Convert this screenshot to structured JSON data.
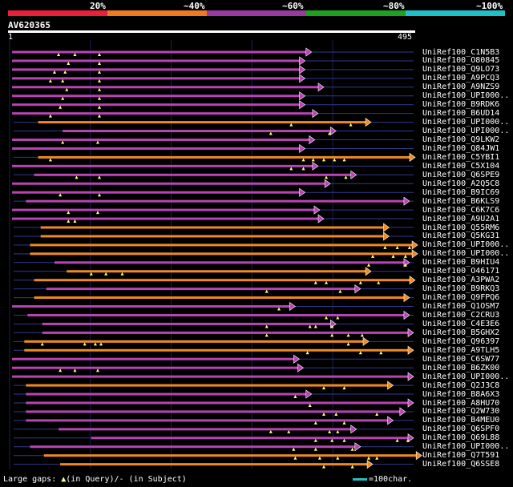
{
  "scale": {
    "segments": [
      {
        "label": "20%",
        "color": "#e8203a"
      },
      {
        "label": "~40%",
        "color": "#f07a22"
      },
      {
        "label": "~60%",
        "color": "#9a3aa0"
      },
      {
        "label": "~80%",
        "color": "#20a020"
      },
      {
        "label": "~100%",
        "color": "#20c0c8"
      }
    ]
  },
  "query": {
    "name": "AV620365",
    "start": "1",
    "end": "495",
    "length": 495
  },
  "colors": {
    "purple": "#b844b4",
    "orange": "#f08a20",
    "gap": "#303a90",
    "marker": "#ffff80"
  },
  "hits": [
    {
      "label": "UniRef100_C1N5B3",
      "color": "purple",
      "s": 3,
      "e": 370,
      "m": [
        60,
        80,
        110
      ]
    },
    {
      "label": "UniRef100_O80845",
      "color": "purple",
      "s": 3,
      "e": 362,
      "m": [
        72,
        110
      ]
    },
    {
      "label": "UniRef100_Q9LO73",
      "color": "purple",
      "s": 3,
      "e": 362,
      "m": [
        55,
        68,
        110
      ]
    },
    {
      "label": "UniRef100_A9PCQ3",
      "color": "purple",
      "s": 3,
      "e": 362,
      "m": [
        50,
        65,
        110
      ]
    },
    {
      "label": "UniRef100_A9NZS9",
      "color": "purple",
      "s": 3,
      "e": 385,
      "m": [
        70,
        110
      ]
    },
    {
      "label": "UniRef100_UPI000..",
      "color": "purple",
      "s": 3,
      "e": 362,
      "m": [
        65,
        110
      ]
    },
    {
      "label": "UniRef100_B9RDK6",
      "color": "purple",
      "s": 3,
      "e": 362,
      "m": [
        62,
        110
      ]
    },
    {
      "label": "UniRef100_B6UD14",
      "color": "purple",
      "s": 3,
      "e": 378,
      "m": [
        50,
        110
      ]
    },
    {
      "label": "UniRef100_UPI000..",
      "color": "orange",
      "s": 35,
      "e": 443,
      "m": [
        345,
        418
      ]
    },
    {
      "label": "UniRef100_UPI000..",
      "color": "purple",
      "s": 65,
      "e": 400,
      "m": [
        320,
        392
      ]
    },
    {
      "label": "UniRef100_Q9LKW2",
      "color": "purple",
      "s": 3,
      "e": 374,
      "m": [
        65,
        108
      ]
    },
    {
      "label": "UniRef100_Q84JW1",
      "color": "purple",
      "s": 3,
      "e": 362,
      "m": []
    },
    {
      "label": "UniRef100_C5YBI1",
      "color": "orange",
      "s": 35,
      "e": 497,
      "m": [
        50,
        360,
        372,
        385,
        398,
        410
      ]
    },
    {
      "label": "UniRef100_C5X104",
      "color": "purple",
      "s": 3,
      "e": 378,
      "m": [
        345,
        360
      ]
    },
    {
      "label": "UniRef100_Q6SPE9",
      "color": "purple",
      "s": 30,
      "e": 425,
      "m": [
        82,
        110,
        388,
        412
      ]
    },
    {
      "label": "UniRef100_A2Q5C8",
      "color": "purple",
      "s": 3,
      "e": 393,
      "m": []
    },
    {
      "label": "UniRef100_B9IC69",
      "color": "purple",
      "s": 3,
      "e": 362,
      "m": [
        62,
        110
      ]
    },
    {
      "label": "UniRef100_B6KLS9",
      "color": "purple",
      "s": 20,
      "e": 490,
      "m": []
    },
    {
      "label": "UniRef100_C6K7C6",
      "color": "purple",
      "s": 3,
      "e": 380,
      "m": [
        72,
        108
      ]
    },
    {
      "label": "UniRef100_A9U2A1",
      "color": "purple",
      "s": 3,
      "e": 385,
      "m": [
        72,
        80
      ]
    },
    {
      "label": "UniRef100_Q55RM6",
      "color": "orange",
      "s": 38,
      "e": 465,
      "m": []
    },
    {
      "label": "UniRef100_Q5KG31",
      "color": "orange",
      "s": 38,
      "e": 465,
      "m": []
    },
    {
      "label": "UniRef100_UPI000..",
      "color": "orange",
      "s": 25,
      "e": 500,
      "m": [
        460,
        475,
        490
      ]
    },
    {
      "label": "UniRef100_UPI000..",
      "color": "orange",
      "s": 25,
      "e": 500,
      "m": [
        445,
        470,
        485
      ]
    },
    {
      "label": "UniRef100_B9HIU4",
      "color": "purple",
      "s": 55,
      "e": 490,
      "m": [
        440,
        485
      ]
    },
    {
      "label": "UniRef100_O46171",
      "color": "orange",
      "s": 70,
      "e": 443,
      "m": [
        100,
        118,
        138
      ]
    },
    {
      "label": "UniRef100_A3PWA2",
      "color": "orange",
      "s": 30,
      "e": 497,
      "m": [
        375,
        388,
        430,
        452
      ]
    },
    {
      "label": "UniRef100_B9RKQ3",
      "color": "purple",
      "s": 45,
      "e": 430,
      "m": [
        315,
        405
      ]
    },
    {
      "label": "UniRef100_Q9FPQ6",
      "color": "orange",
      "s": 30,
      "e": 490,
      "m": []
    },
    {
      "label": "UniRef100_Q1OSM7",
      "color": "purple",
      "s": 3,
      "e": 350,
      "m": [
        330
      ]
    },
    {
      "label": "UniRef100_C2CRU3",
      "color": "purple",
      "s": 22,
      "e": 490,
      "m": [
        388,
        402
      ]
    },
    {
      "label": "UniRef100_C4E3E6",
      "color": "purple",
      "s": 40,
      "e": 400,
      "m": [
        315,
        368,
        375,
        395
      ]
    },
    {
      "label": "UniRef100_B5GHX2",
      "color": "purple",
      "s": 40,
      "e": 495,
      "m": [
        315,
        395,
        415,
        432
      ]
    },
    {
      "label": "UniRef100_Q96397",
      "color": "orange",
      "s": 18,
      "e": 440,
      "m": [
        40,
        92,
        105,
        112,
        415
      ]
    },
    {
      "label": "UniRef100_A9TLH5",
      "color": "orange",
      "s": 18,
      "e": 495,
      "m": [
        365,
        430,
        455
      ]
    },
    {
      "label": "UniRef100_C6SW77",
      "color": "purple",
      "s": 3,
      "e": 355,
      "m": []
    },
    {
      "label": "UniRef100_B6ZK00",
      "color": "purple",
      "s": 3,
      "e": 360,
      "m": [
        62,
        80,
        108
      ]
    },
    {
      "label": "UniRef100_UPI000..",
      "color": "purple",
      "s": 3,
      "e": 495,
      "m": []
    },
    {
      "label": "UniRef100_Q2J3C8",
      "color": "orange",
      "s": 20,
      "e": 470,
      "m": [
        385,
        410
      ]
    },
    {
      "label": "UniRef100_B8A6X3",
      "color": "purple",
      "s": 20,
      "e": 370,
      "m": [
        350
      ]
    },
    {
      "label": "UniRef100_A8HU70",
      "color": "purple",
      "s": 20,
      "e": 495,
      "m": [
        368
      ]
    },
    {
      "label": "UniRef100_Q2W730",
      "color": "purple",
      "s": 20,
      "e": 485,
      "m": [
        385,
        400,
        450
      ]
    },
    {
      "label": "UniRef100_B4MEU0",
      "color": "purple",
      "s": 20,
      "e": 470,
      "m": [
        375,
        410
      ]
    },
    {
      "label": "UniRef100_Q6SPF0",
      "color": "purple",
      "s": 60,
      "e": 425,
      "m": [
        320,
        342,
        392,
        402
      ]
    },
    {
      "label": "UniRef100_Q69L88",
      "color": "purple",
      "s": 100,
      "e": 495,
      "m": [
        375,
        395,
        410,
        475,
        488
      ]
    },
    {
      "label": "UniRef100_UPI000..",
      "color": "purple",
      "s": 25,
      "e": 430,
      "m": [
        348,
        375,
        420
      ]
    },
    {
      "label": "UniRef100_Q7T591",
      "color": "orange",
      "s": 42,
      "e": 505,
      "m": [
        350,
        380,
        402,
        440,
        450
      ]
    },
    {
      "label": "UniRef100_Q6SSE8",
      "color": "orange",
      "s": 62,
      "e": 445,
      "m": [
        385,
        420
      ]
    }
  ],
  "legend": {
    "prefix": "Large gaps: ",
    "tri": "▲",
    "middle": "(in Query)/- (in Subject)",
    "scale_text": "=100char."
  }
}
